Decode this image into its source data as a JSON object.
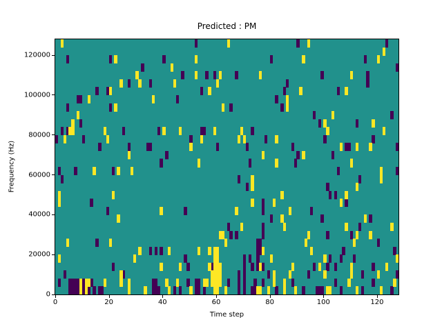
{
  "title": "Predicted : PM",
  "axes": {
    "xlabel": "Time step",
    "ylabel": "Frequency (Hz)",
    "x_ticks": [
      0,
      20,
      40,
      60,
      80,
      100,
      120
    ],
    "y_ticks": [
      0,
      20000,
      40000,
      60000,
      80000,
      100000,
      120000
    ]
  },
  "chart_data": {
    "type": "heatmap",
    "title": "Predicted : PM",
    "xlabel": "Time step",
    "ylabel": "Frequency (Hz)",
    "x_range": [
      0,
      128
    ],
    "y_range": [
      0,
      128000
    ],
    "grid": {
      "cols": 128,
      "rows": 32,
      "hz_per_row": 4000
    },
    "legend": "none",
    "colors": {
      "background": "#21918c",
      "high": "#fde725",
      "low": "#440154",
      "spine": "#000000",
      "figure_background": "#ffffff"
    },
    "cells_yellow": [
      [
        2,
        31
      ],
      [
        64,
        31
      ],
      [
        94,
        31
      ],
      [
        122,
        30
      ],
      [
        22,
        29
      ],
      [
        52,
        29
      ],
      [
        92,
        29
      ],
      [
        120,
        29
      ],
      [
        43,
        28
      ],
      [
        30,
        27
      ],
      [
        52,
        27
      ],
      [
        61,
        27
      ],
      [
        76,
        27
      ],
      [
        110,
        27
      ],
      [
        24,
        26
      ],
      [
        31,
        26
      ],
      [
        44,
        26
      ],
      [
        60,
        26
      ],
      [
        20,
        25
      ],
      [
        57,
        25
      ],
      [
        91,
        25
      ],
      [
        108,
        25
      ],
      [
        12,
        24
      ],
      [
        36,
        24
      ],
      [
        86,
        24
      ],
      [
        22,
        23
      ],
      [
        62,
        23
      ],
      [
        86,
        23
      ],
      [
        8,
        22
      ],
      [
        103,
        22
      ],
      [
        6,
        21
      ],
      [
        100,
        21
      ],
      [
        118,
        21
      ],
      [
        5,
        20
      ],
      [
        6,
        20
      ],
      [
        18,
        20
      ],
      [
        40,
        20
      ],
      [
        46,
        20
      ],
      [
        59,
        20
      ],
      [
        69,
        20
      ],
      [
        101,
        20
      ],
      [
        122,
        20
      ],
      [
        3,
        19
      ],
      [
        19,
        19
      ],
      [
        54,
        19
      ],
      [
        68,
        19
      ],
      [
        70,
        19
      ],
      [
        82,
        19
      ],
      [
        50,
        18
      ],
      [
        106,
        18
      ],
      [
        112,
        18
      ],
      [
        117,
        18
      ],
      [
        27,
        17
      ],
      [
        77,
        17
      ],
      [
        92,
        17
      ],
      [
        53,
        16
      ],
      [
        82,
        16
      ],
      [
        110,
        16
      ],
      [
        14,
        15
      ],
      [
        23,
        15
      ],
      [
        28,
        15
      ],
      [
        121,
        15
      ],
      [
        73,
        14
      ],
      [
        121,
        14
      ],
      [
        73,
        13
      ],
      [
        112,
        13
      ],
      [
        1,
        12
      ],
      [
        21,
        12
      ],
      [
        84,
        12
      ],
      [
        108,
        12
      ],
      [
        1,
        11
      ],
      [
        73,
        11
      ],
      [
        81,
        11
      ],
      [
        106,
        11
      ],
      [
        39,
        10
      ],
      [
        67,
        10
      ],
      [
        87,
        10
      ],
      [
        23,
        9
      ],
      [
        84,
        9
      ],
      [
        115,
        9
      ],
      [
        69,
        8
      ],
      [
        85,
        8
      ],
      [
        108,
        8
      ],
      [
        125,
        8
      ],
      [
        61,
        7
      ],
      [
        62,
        7
      ],
      [
        94,
        7
      ],
      [
        112,
        7
      ],
      [
        117,
        7
      ],
      [
        4,
        6
      ],
      [
        20,
        6
      ],
      [
        63,
        6
      ],
      [
        93,
        6
      ],
      [
        111,
        6
      ],
      [
        31,
        5
      ],
      [
        42,
        5
      ],
      [
        53,
        5
      ],
      [
        57,
        5
      ],
      [
        59,
        5
      ],
      [
        60,
        5
      ],
      [
        77,
        5
      ],
      [
        95,
        5
      ],
      [
        1,
        4
      ],
      [
        29,
        4
      ],
      [
        59,
        4
      ],
      [
        60,
        4
      ],
      [
        80,
        4
      ],
      [
        100,
        4
      ],
      [
        127,
        4
      ],
      [
        39,
        3
      ],
      [
        46,
        3
      ],
      [
        57,
        3
      ],
      [
        59,
        3
      ],
      [
        60,
        3
      ],
      [
        61,
        3
      ],
      [
        76,
        3
      ],
      [
        88,
        3
      ],
      [
        98,
        3
      ],
      [
        110,
        3
      ],
      [
        123,
        3
      ],
      [
        24,
        2
      ],
      [
        58,
        2
      ],
      [
        59,
        2
      ],
      [
        60,
        2
      ],
      [
        61,
        2
      ],
      [
        81,
        2
      ],
      [
        87,
        2
      ],
      [
        100,
        2
      ],
      [
        110,
        2
      ],
      [
        120,
        2
      ],
      [
        9,
        1
      ],
      [
        11,
        1
      ],
      [
        12,
        1
      ],
      [
        18,
        1
      ],
      [
        24,
        1
      ],
      [
        27,
        1
      ],
      [
        41,
        1
      ],
      [
        45,
        1
      ],
      [
        55,
        1
      ],
      [
        56,
        1
      ],
      [
        58,
        1
      ],
      [
        59,
        1
      ],
      [
        60,
        1
      ],
      [
        61,
        1
      ],
      [
        81,
        1
      ],
      [
        85,
        1
      ],
      [
        109,
        1
      ],
      [
        126,
        1
      ],
      [
        9,
        0
      ],
      [
        11,
        0
      ],
      [
        27,
        0
      ],
      [
        33,
        0
      ],
      [
        42,
        0
      ],
      [
        50,
        0
      ],
      [
        59,
        0
      ],
      [
        60,
        0
      ],
      [
        63,
        0
      ],
      [
        75,
        0
      ],
      [
        76,
        0
      ],
      [
        79,
        0
      ],
      [
        85,
        0
      ],
      [
        89,
        0
      ],
      [
        101,
        0
      ],
      [
        102,
        0
      ],
      [
        112,
        0
      ],
      [
        121,
        0
      ]
    ],
    "cells_dark": [
      [
        52,
        31
      ],
      [
        90,
        31
      ],
      [
        123,
        31
      ],
      [
        4,
        29
      ],
      [
        20,
        29
      ],
      [
        40,
        29
      ],
      [
        80,
        29
      ],
      [
        115,
        29
      ],
      [
        32,
        28
      ],
      [
        127,
        28
      ],
      [
        47,
        27
      ],
      [
        56,
        27
      ],
      [
        59,
        27
      ],
      [
        67,
        27
      ],
      [
        99,
        27
      ],
      [
        116,
        27
      ],
      [
        27,
        26
      ],
      [
        35,
        26
      ],
      [
        86,
        26
      ],
      [
        116,
        26
      ],
      [
        15,
        25
      ],
      [
        19,
        25
      ],
      [
        54,
        25
      ],
      [
        85,
        25
      ],
      [
        105,
        25
      ],
      [
        8,
        24
      ],
      [
        9,
        24
      ],
      [
        45,
        24
      ],
      [
        82,
        24
      ],
      [
        4,
        23
      ],
      [
        20,
        23
      ],
      [
        65,
        23
      ],
      [
        84,
        23
      ],
      [
        96,
        22
      ],
      [
        125,
        22
      ],
      [
        9,
        21
      ],
      [
        98,
        21
      ],
      [
        112,
        21
      ],
      [
        2,
        20
      ],
      [
        4,
        20
      ],
      [
        25,
        20
      ],
      [
        38,
        20
      ],
      [
        54,
        20
      ],
      [
        55,
        20
      ],
      [
        73,
        20
      ],
      [
        0,
        19
      ],
      [
        10,
        19
      ],
      [
        50,
        19
      ],
      [
        78,
        19
      ],
      [
        100,
        19
      ],
      [
        118,
        19
      ],
      [
        16,
        18
      ],
      [
        27,
        18
      ],
      [
        34,
        18
      ],
      [
        35,
        18
      ],
      [
        60,
        18
      ],
      [
        71,
        18
      ],
      [
        88,
        18
      ],
      [
        108,
        18
      ],
      [
        109,
        18
      ],
      [
        127,
        18
      ],
      [
        41,
        17
      ],
      [
        90,
        17
      ],
      [
        103,
        17
      ],
      [
        39,
        16
      ],
      [
        72,
        16
      ],
      [
        89,
        16
      ],
      [
        1,
        15
      ],
      [
        7,
        15
      ],
      [
        21,
        15
      ],
      [
        105,
        15
      ],
      [
        127,
        15
      ],
      [
        2,
        14
      ],
      [
        68,
        14
      ],
      [
        113,
        14
      ],
      [
        71,
        13
      ],
      [
        101,
        13
      ],
      [
        102,
        12
      ],
      [
        104,
        12
      ],
      [
        13,
        11
      ],
      [
        77,
        11
      ],
      [
        108,
        11
      ],
      [
        19,
        10
      ],
      [
        48,
        10
      ],
      [
        77,
        10
      ],
      [
        95,
        10
      ],
      [
        80,
        9
      ],
      [
        99,
        9
      ],
      [
        117,
        9
      ],
      [
        64,
        8
      ],
      [
        77,
        8
      ],
      [
        113,
        8
      ],
      [
        65,
        7
      ],
      [
        67,
        7
      ],
      [
        77,
        7
      ],
      [
        101,
        7
      ],
      [
        110,
        7
      ],
      [
        15,
        6
      ],
      [
        75,
        6
      ],
      [
        76,
        6
      ],
      [
        120,
        6
      ],
      [
        35,
        5
      ],
      [
        37,
        5
      ],
      [
        39,
        5
      ],
      [
        75,
        5
      ],
      [
        76,
        5
      ],
      [
        107,
        5
      ],
      [
        126,
        5
      ],
      [
        48,
        4
      ],
      [
        70,
        4
      ],
      [
        72,
        4
      ],
      [
        75,
        4
      ],
      [
        102,
        4
      ],
      [
        106,
        4
      ],
      [
        111,
        4
      ],
      [
        21,
        3
      ],
      [
        49,
        3
      ],
      [
        58,
        3
      ],
      [
        70,
        3
      ],
      [
        73,
        3
      ],
      [
        75,
        3
      ],
      [
        77,
        3
      ],
      [
        96,
        3
      ],
      [
        101,
        3
      ],
      [
        104,
        3
      ],
      [
        118,
        3
      ],
      [
        3,
        2
      ],
      [
        25,
        2
      ],
      [
        68,
        2
      ],
      [
        70,
        2
      ],
      [
        79,
        2
      ],
      [
        94,
        2
      ],
      [
        114,
        2
      ],
      [
        127,
        2
      ],
      [
        1,
        1
      ],
      [
        5,
        1
      ],
      [
        6,
        1
      ],
      [
        7,
        1
      ],
      [
        8,
        1
      ],
      [
        10,
        1
      ],
      [
        13,
        1
      ],
      [
        36,
        1
      ],
      [
        37,
        1
      ],
      [
        49,
        1
      ],
      [
        52,
        1
      ],
      [
        53,
        1
      ],
      [
        64,
        1
      ],
      [
        68,
        1
      ],
      [
        70,
        1
      ],
      [
        74,
        1
      ],
      [
        77,
        1
      ],
      [
        88,
        1
      ],
      [
        104,
        1
      ],
      [
        118,
        1
      ],
      [
        5,
        0
      ],
      [
        6,
        0
      ],
      [
        7,
        0
      ],
      [
        8,
        0
      ],
      [
        10,
        0
      ],
      [
        12,
        0
      ],
      [
        14,
        0
      ],
      [
        16,
        0
      ],
      [
        17,
        0
      ],
      [
        36,
        0
      ],
      [
        37,
        0
      ],
      [
        38,
        0
      ],
      [
        44,
        0
      ],
      [
        46,
        0
      ],
      [
        52,
        0
      ],
      [
        53,
        0
      ],
      [
        55,
        0
      ],
      [
        68,
        0
      ],
      [
        70,
        0
      ],
      [
        73,
        0
      ],
      [
        74,
        0
      ],
      [
        82,
        0
      ],
      [
        92,
        0
      ],
      [
        97,
        0
      ],
      [
        98,
        0
      ],
      [
        99,
        0
      ],
      [
        106,
        0
      ],
      [
        114,
        0
      ],
      [
        125,
        0
      ]
    ]
  }
}
